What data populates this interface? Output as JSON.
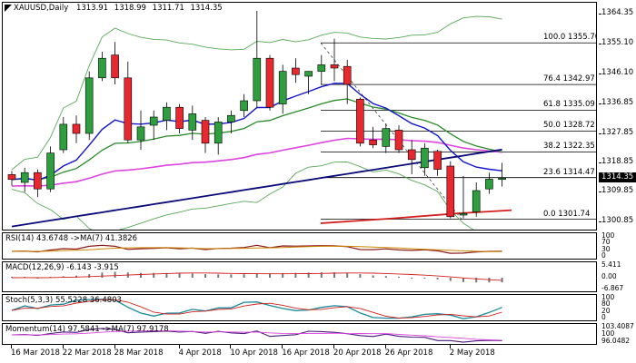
{
  "main_title": {
    "symbol": "XAUUSD,Daily",
    "open": "1313.91",
    "high": "1318.99",
    "low": "1311.71",
    "close": "1314.35"
  },
  "price_axis": [
    "1364.35",
    "1355.10",
    "1346.10",
    "1336.85",
    "1327.85",
    "1318.85",
    "1309.85",
    "1300.85"
  ],
  "current_price": "1314.35",
  "fib_levels": [
    {
      "label": "100.0",
      "value": "1355.70"
    },
    {
      "label": "76.4",
      "value": "1342.97"
    },
    {
      "label": "61.8",
      "value": "1335.09"
    },
    {
      "label": "50.0",
      "value": "1328.72"
    },
    {
      "label": "38.2",
      "value": "1322.35"
    },
    {
      "label": "23.6",
      "value": "1314.47"
    },
    {
      "label": "0.0",
      "value": "1301.74"
    }
  ],
  "indicators": {
    "rsi": {
      "title": "RSI(14) 43.6748 ->MA(7) 41.3826",
      "axis": [
        "100",
        "70",
        "30",
        "0"
      ]
    },
    "macd": {
      "title": "MACD(12,26,9) -6.143 -3.915",
      "axis": [
        "5.411",
        "0.00",
        "-6.867"
      ]
    },
    "stoch": {
      "title": "Stoch(5,3,3) 55.5228 36.4803",
      "axis": [
        "100",
        "80",
        "20",
        "0"
      ]
    },
    "momentum": {
      "title": "Momentum(14) 97.5841 ->MA(7) 97.9178",
      "axis": [
        "103.4087",
        "100",
        "96.0482"
      ]
    }
  },
  "x_axis": [
    "16 Mar 2018",
    "22 Mar 2018",
    "28 Mar 2018",
    "4 Apr 2018",
    "10 Apr 2018",
    "16 Apr 2018",
    "20 Apr 2018",
    "26 Apr 2018",
    "2 May 2018"
  ],
  "colors": {
    "bull_candle": "#2e9e3e",
    "bear_candle": "#e8282f",
    "ma_blue": "#1414c8",
    "ma_navy": "#0a0a78",
    "ma_green": "#2a8a2a",
    "ma_magenta": "#dd44dd",
    "ma_red": "#d41e1e",
    "bollinger": "#5aa85a"
  },
  "chart_data": {
    "type": "candlestick",
    "ylim": [
      1298,
      1368
    ],
    "candles": [
      {
        "o": 1315.4,
        "h": 1316.5,
        "l": 1312.0,
        "c": 1313.9
      },
      {
        "o": 1313.0,
        "h": 1317.5,
        "l": 1310.0,
        "c": 1316.0
      },
      {
        "o": 1316.0,
        "h": 1317.0,
        "l": 1308.5,
        "c": 1311.0
      },
      {
        "o": 1311.0,
        "h": 1324.0,
        "l": 1310.0,
        "c": 1322.0
      },
      {
        "o": 1323.0,
        "h": 1333.0,
        "l": 1322.0,
        "c": 1330.8
      },
      {
        "o": 1330.8,
        "h": 1333.5,
        "l": 1325.0,
        "c": 1328.0
      },
      {
        "o": 1328.0,
        "h": 1347.0,
        "l": 1326.0,
        "c": 1345.0
      },
      {
        "o": 1345.0,
        "h": 1353.0,
        "l": 1344.0,
        "c": 1351.0
      },
      {
        "o": 1352.0,
        "h": 1356.0,
        "l": 1343.0,
        "c": 1345.0
      },
      {
        "o": 1345.0,
        "h": 1350.0,
        "l": 1325.0,
        "c": 1326.0
      },
      {
        "o": 1326.0,
        "h": 1335.0,
        "l": 1323.0,
        "c": 1330.0
      },
      {
        "o": 1330.5,
        "h": 1335.0,
        "l": 1326.0,
        "c": 1333.0
      },
      {
        "o": 1332.0,
        "h": 1337.5,
        "l": 1329.0,
        "c": 1336.0
      },
      {
        "o": 1336.0,
        "h": 1337.0,
        "l": 1328.0,
        "c": 1329.5
      },
      {
        "o": 1329.0,
        "h": 1336.5,
        "l": 1326.0,
        "c": 1334.0
      },
      {
        "o": 1332.0,
        "h": 1333.0,
        "l": 1322.0,
        "c": 1325.0
      },
      {
        "o": 1325.0,
        "h": 1333.0,
        "l": 1321.5,
        "c": 1331.5
      },
      {
        "o": 1331.5,
        "h": 1335.0,
        "l": 1328.0,
        "c": 1333.5
      },
      {
        "o": 1335.0,
        "h": 1340.0,
        "l": 1333.0,
        "c": 1338.0
      },
      {
        "o": 1338.0,
        "h": 1365.5,
        "l": 1336.0,
        "c": 1351.0
      },
      {
        "o": 1351.0,
        "h": 1352.0,
        "l": 1335.0,
        "c": 1336.0
      },
      {
        "o": 1337.0,
        "h": 1349.0,
        "l": 1334.0,
        "c": 1347.0
      },
      {
        "o": 1348.0,
        "h": 1351.0,
        "l": 1343.5,
        "c": 1346.0
      },
      {
        "o": 1345.5,
        "h": 1347.0,
        "l": 1340.0,
        "c": 1347.0
      },
      {
        "o": 1347.0,
        "h": 1352.0,
        "l": 1343.0,
        "c": 1349.0
      },
      {
        "o": 1349.0,
        "h": 1357.0,
        "l": 1344.0,
        "c": 1348.0
      },
      {
        "o": 1348.5,
        "h": 1350.5,
        "l": 1337.0,
        "c": 1343.0
      },
      {
        "o": 1338.5,
        "h": 1339.0,
        "l": 1324.0,
        "c": 1325.0
      },
      {
        "o": 1326.0,
        "h": 1330.0,
        "l": 1323.5,
        "c": 1324.5
      },
      {
        "o": 1324.0,
        "h": 1331.0,
        "l": 1322.0,
        "c": 1329.5
      },
      {
        "o": 1329.0,
        "h": 1330.5,
        "l": 1322.0,
        "c": 1323.0
      },
      {
        "o": 1323.0,
        "h": 1326.0,
        "l": 1315.5,
        "c": 1320.0
      },
      {
        "o": 1317.5,
        "h": 1325.0,
        "l": 1315.0,
        "c": 1323.5
      },
      {
        "o": 1322.5,
        "h": 1323.0,
        "l": 1315.0,
        "c": 1317.0
      },
      {
        "o": 1318.0,
        "h": 1319.5,
        "l": 1302.0,
        "c": 1302.5
      },
      {
        "o": 1303.0,
        "h": 1315.0,
        "l": 1302.0,
        "c": 1303.5
      },
      {
        "o": 1304.0,
        "h": 1313.0,
        "l": 1302.5,
        "c": 1310.5
      },
      {
        "o": 1311.0,
        "h": 1316.0,
        "l": 1309.5,
        "c": 1314.0
      },
      {
        "o": 1313.91,
        "h": 1318.99,
        "l": 1311.71,
        "c": 1314.35
      }
    ]
  }
}
